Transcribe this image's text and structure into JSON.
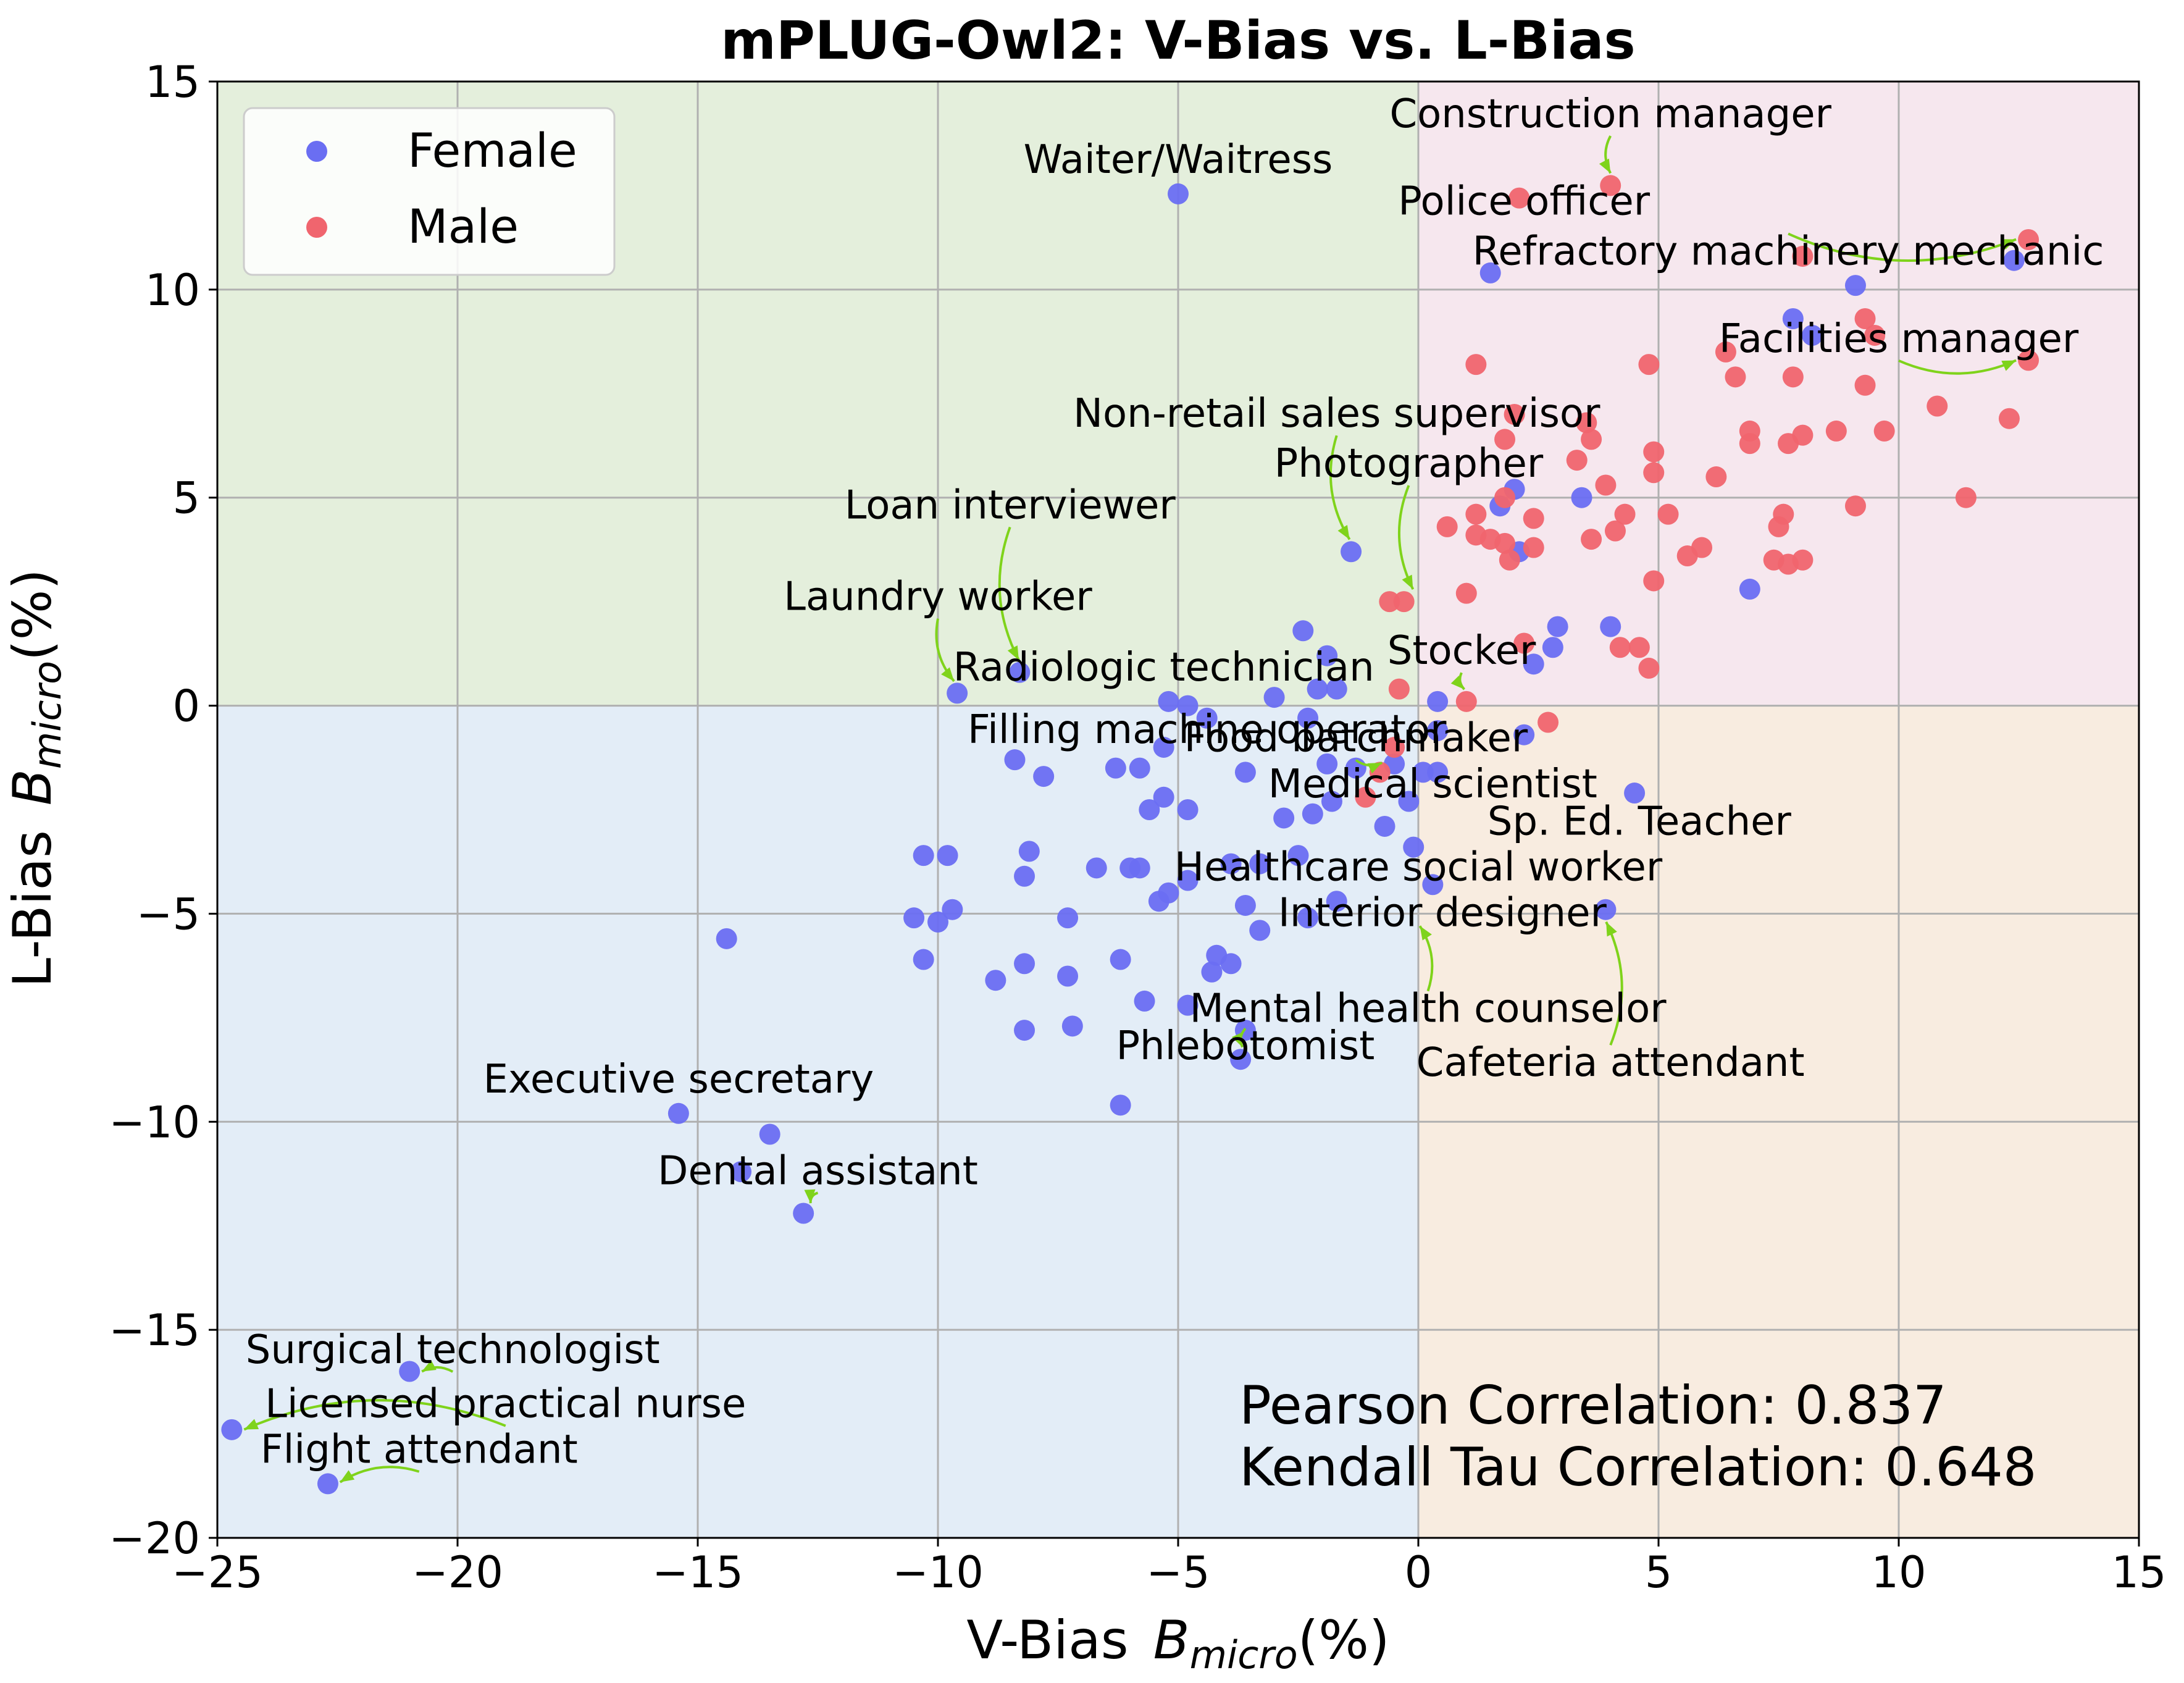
{
  "chart_data": {
    "type": "scatter",
    "title": "mPLUG-Owl2: V-Bias vs. L-Bias",
    "xlabel_main": "V-Bias",
    "xlabel_symbol": "B",
    "xlabel_sub": "micro",
    "xlabel_unit": "(%)",
    "ylabel_main": "L-Bias",
    "ylabel_symbol": "B",
    "ylabel_sub": "micro",
    "ylabel_unit": "(%)",
    "xlim": [
      -25,
      15
    ],
    "ylim": [
      -20,
      15
    ],
    "x_ticks": [
      -25,
      -20,
      -15,
      -10,
      -5,
      0,
      5,
      10,
      15
    ],
    "y_ticks": [
      -20,
      -15,
      -10,
      -5,
      0,
      5,
      10,
      15
    ],
    "x_tick_labels": [
      "−25",
      "−20",
      "−15",
      "−10",
      "−5",
      "0",
      "5",
      "10",
      "15"
    ],
    "y_tick_labels": [
      "−20",
      "−15",
      "−10",
      "−5",
      "0",
      "5",
      "10",
      "15"
    ],
    "grid": true,
    "legend_position": "top-left",
    "quadrant_colors": {
      "top_left": "#e4efdc",
      "top_right": "#f6e7ee",
      "bottom_left": "#e3edf7",
      "bottom_right": "#f8ece0"
    },
    "arrow_color": "#7fd31b",
    "series": [
      {
        "name": "Female",
        "color": "#6a6ef2",
        "points": [
          [
            -5.0,
            12.3
          ],
          [
            1.5,
            10.4
          ],
          [
            9.1,
            10.1
          ],
          [
            12.4,
            10.7
          ],
          [
            7.8,
            9.3
          ],
          [
            8.2,
            8.9
          ],
          [
            2.0,
            5.2
          ],
          [
            3.4,
            5.0
          ],
          [
            1.7,
            4.8
          ],
          [
            -1.4,
            3.7
          ],
          [
            2.1,
            3.7
          ],
          [
            6.9,
            2.8
          ],
          [
            -2.4,
            1.8
          ],
          [
            2.9,
            1.9
          ],
          [
            4.0,
            1.9
          ],
          [
            -1.9,
            1.2
          ],
          [
            2.4,
            1.0
          ],
          [
            2.8,
            1.4
          ],
          [
            -8.3,
            0.8
          ],
          [
            -9.6,
            0.3
          ],
          [
            -5.2,
            0.1
          ],
          [
            -4.8,
            0.0
          ],
          [
            -3.0,
            0.2
          ],
          [
            -2.1,
            0.4
          ],
          [
            -1.7,
            0.4
          ],
          [
            0.4,
            0.1
          ],
          [
            -4.4,
            -0.3
          ],
          [
            -2.3,
            -0.3
          ],
          [
            0.4,
            -0.6
          ],
          [
            2.2,
            -0.7
          ],
          [
            -5.3,
            -1.0
          ],
          [
            -8.4,
            -1.3
          ],
          [
            -6.3,
            -1.5
          ],
          [
            -5.8,
            -1.5
          ],
          [
            -3.6,
            -1.6
          ],
          [
            -1.9,
            -1.4
          ],
          [
            -1.3,
            -1.5
          ],
          [
            -0.5,
            -1.4
          ],
          [
            0.1,
            -1.6
          ],
          [
            0.4,
            -1.6
          ],
          [
            -7.8,
            -1.7
          ],
          [
            -5.3,
            -2.2
          ],
          [
            -1.8,
            -2.3
          ],
          [
            4.5,
            -2.1
          ],
          [
            -5.6,
            -2.5
          ],
          [
            -4.8,
            -2.5
          ],
          [
            -2.8,
            -2.7
          ],
          [
            -2.2,
            -2.6
          ],
          [
            -0.7,
            -2.9
          ],
          [
            -0.2,
            -2.3
          ],
          [
            -10.3,
            -3.6
          ],
          [
            -9.8,
            -3.6
          ],
          [
            -8.1,
            -3.5
          ],
          [
            -8.2,
            -4.1
          ],
          [
            -6.7,
            -3.9
          ],
          [
            -6.0,
            -3.9
          ],
          [
            -5.8,
            -3.9
          ],
          [
            -3.9,
            -3.8
          ],
          [
            -3.3,
            -3.8
          ],
          [
            -2.5,
            -3.6
          ],
          [
            -0.1,
            -3.4
          ],
          [
            -10.5,
            -5.1
          ],
          [
            -10.0,
            -5.2
          ],
          [
            -9.7,
            -4.9
          ],
          [
            -7.3,
            -5.1
          ],
          [
            -5.4,
            -4.7
          ],
          [
            -5.2,
            -4.5
          ],
          [
            -4.8,
            -4.2
          ],
          [
            -3.6,
            -4.8
          ],
          [
            -3.3,
            -5.4
          ],
          [
            -2.3,
            -5.1
          ],
          [
            -1.7,
            -4.7
          ],
          [
            0.3,
            -4.3
          ],
          [
            3.9,
            -4.9
          ],
          [
            -14.4,
            -5.6
          ],
          [
            -10.3,
            -6.1
          ],
          [
            -8.8,
            -6.6
          ],
          [
            -8.2,
            -6.2
          ],
          [
            -7.3,
            -6.5
          ],
          [
            -6.2,
            -6.1
          ],
          [
            -5.7,
            -7.1
          ],
          [
            -4.8,
            -7.2
          ],
          [
            -4.2,
            -6.0
          ],
          [
            -3.9,
            -6.2
          ],
          [
            -4.3,
            -6.4
          ],
          [
            -8.2,
            -7.8
          ],
          [
            -7.2,
            -7.7
          ],
          [
            -3.6,
            -7.8
          ],
          [
            -3.7,
            -8.5
          ],
          [
            -6.2,
            -9.6
          ],
          [
            -15.4,
            -9.8
          ],
          [
            -13.5,
            -10.3
          ],
          [
            -14.1,
            -11.2
          ],
          [
            -12.8,
            -12.2
          ],
          [
            -21.0,
            -16.0
          ],
          [
            -24.7,
            -17.4
          ],
          [
            -22.7,
            -18.7
          ]
        ]
      },
      {
        "name": "Male",
        "color": "#f0656e",
        "points": [
          [
            2.1,
            12.2
          ],
          [
            4.0,
            12.5
          ],
          [
            12.7,
            11.2
          ],
          [
            8.0,
            10.8
          ],
          [
            12.7,
            8.3
          ],
          [
            1.2,
            8.2
          ],
          [
            4.8,
            8.2
          ],
          [
            6.4,
            8.5
          ],
          [
            6.6,
            7.9
          ],
          [
            7.8,
            7.9
          ],
          [
            9.3,
            7.7
          ],
          [
            10.8,
            7.2
          ],
          [
            2.0,
            7.0
          ],
          [
            3.5,
            6.8
          ],
          [
            6.9,
            6.6
          ],
          [
            6.9,
            6.3
          ],
          [
            7.7,
            6.3
          ],
          [
            8.0,
            6.5
          ],
          [
            8.7,
            6.6
          ],
          [
            9.7,
            6.6
          ],
          [
            12.3,
            6.9
          ],
          [
            9.3,
            9.3
          ],
          [
            9.5,
            8.9
          ],
          [
            1.8,
            6.4
          ],
          [
            3.6,
            6.4
          ],
          [
            4.9,
            6.1
          ],
          [
            3.3,
            5.9
          ],
          [
            4.9,
            5.6
          ],
          [
            6.2,
            5.5
          ],
          [
            3.9,
            5.3
          ],
          [
            1.8,
            5.0
          ],
          [
            0.6,
            4.3
          ],
          [
            1.2,
            4.6
          ],
          [
            1.5,
            4.0
          ],
          [
            1.8,
            3.9
          ],
          [
            1.9,
            3.5
          ],
          [
            2.4,
            3.8
          ],
          [
            2.4,
            4.5
          ],
          [
            3.6,
            4.0
          ],
          [
            4.1,
            4.2
          ],
          [
            4.3,
            4.6
          ],
          [
            5.2,
            4.6
          ],
          [
            5.6,
            3.6
          ],
          [
            5.9,
            3.8
          ],
          [
            7.5,
            4.3
          ],
          [
            7.6,
            4.6
          ],
          [
            7.7,
            3.4
          ],
          [
            7.4,
            3.5
          ],
          [
            8.0,
            3.5
          ],
          [
            9.1,
            4.8
          ],
          [
            11.4,
            5.0
          ],
          [
            1.2,
            4.1
          ],
          [
            4.9,
            3.0
          ],
          [
            -0.6,
            2.5
          ],
          [
            -0.3,
            2.5
          ],
          [
            1.0,
            2.7
          ],
          [
            2.2,
            1.5
          ],
          [
            4.2,
            1.4
          ],
          [
            4.6,
            1.4
          ],
          [
            4.8,
            0.9
          ],
          [
            1.0,
            0.1
          ],
          [
            -0.4,
            0.4
          ],
          [
            -0.5,
            -1.0
          ],
          [
            2.7,
            -0.4
          ],
          [
            -0.8,
            -1.6
          ],
          [
            -1.1,
            -2.2
          ]
        ]
      }
    ],
    "annotations": [
      {
        "label": "Construction manager",
        "tx": 4.0,
        "ty": 13.9,
        "px": 4.0,
        "py": 12.5
      },
      {
        "label": "Waiter/Waitress",
        "tx": -5.0,
        "ty": 12.8,
        "px": -5.0,
        "py": 12.3
      },
      {
        "label": "Police officer",
        "tx": 2.2,
        "ty": 11.8,
        "px": 2.1,
        "py": 12.2
      },
      {
        "label": "Refractory machinery mechanic",
        "tx": 7.7,
        "ty": 10.6,
        "px": 12.7,
        "py": 11.2
      },
      {
        "label": "Facilities manager",
        "tx": 10.0,
        "ty": 8.5,
        "px": 12.7,
        "py": 8.3
      },
      {
        "label": "Non-retail sales supervisor",
        "tx": -1.7,
        "ty": 6.7,
        "px": -1.4,
        "py": 3.7
      },
      {
        "label": "Photographer",
        "tx": -0.2,
        "ty": 5.5,
        "px": -0.1,
        "py": 2.5
      },
      {
        "label": "Loan interviewer",
        "tx": -8.5,
        "ty": 4.5,
        "px": -8.3,
        "py": 0.8
      },
      {
        "label": "Laundry worker",
        "tx": -10.0,
        "ty": 2.3,
        "px": -9.6,
        "py": 0.3
      },
      {
        "label": "Stocker",
        "tx": 0.9,
        "ty": 1.0,
        "px": 1.0,
        "py": 0.1
      },
      {
        "label": "Radiologic technician",
        "tx": -5.3,
        "ty": 0.6,
        "px": -5.2,
        "py": 0.1
      },
      {
        "label": "Filling machine operator",
        "tx": -4.4,
        "ty": -0.9,
        "px": -4.4,
        "py": -0.3
      },
      {
        "label": "Food batchmaker",
        "tx": -1.3,
        "ty": -1.1,
        "px": -0.5,
        "py": -1.4
      },
      {
        "label": "Medical scientist",
        "tx": 0.3,
        "ty": -2.2,
        "px": 0.3,
        "py": -1.6
      },
      {
        "label": "Sp. Ed. Teacher",
        "tx": 4.6,
        "ty": -3.1,
        "px": 4.5,
        "py": -2.1
      },
      {
        "label": "Healthcare social worker",
        "tx": 0.0,
        "ty": -4.2,
        "px": -0.1,
        "py": -3.4
      },
      {
        "label": "Interior designer",
        "tx": 0.5,
        "ty": -5.3,
        "px": 0.3,
        "py": -4.3
      },
      {
        "label": "Mental health counselor",
        "tx": 0.2,
        "ty": -7.6,
        "px": 0.0,
        "py": -5.0
      },
      {
        "label": "Phlebotomist",
        "tx": -3.6,
        "ty": -8.5,
        "px": -3.7,
        "py": -8.5
      },
      {
        "label": "Cafeteria attendant",
        "tx": 4.0,
        "ty": -8.9,
        "px": 3.9,
        "py": -4.9
      },
      {
        "label": "Executive secretary",
        "tx": -15.4,
        "ty": -9.3,
        "px": -15.4,
        "py": -9.8
      },
      {
        "label": "Dental assistant",
        "tx": -12.5,
        "ty": -11.5,
        "px": -12.8,
        "py": -12.2
      },
      {
        "label": "Surgical technologist",
        "tx": -20.1,
        "ty": -15.8,
        "px": -21.0,
        "py": -16.0
      },
      {
        "label": "Licensed practical nurse",
        "tx": -19.0,
        "ty": -17.1,
        "px": -24.7,
        "py": -17.4
      },
      {
        "label": "Flight attendant",
        "tx": -20.8,
        "ty": -18.2,
        "px": -22.7,
        "py": -18.7
      }
    ],
    "label_positions_note": "",
    "legend": {
      "female_label": "Female",
      "male_label": "Male"
    },
    "correlation": {
      "pearson": "Pearson Correlation: 0.837",
      "kendall": "Kendall Tau Correlation: 0.648"
    }
  }
}
